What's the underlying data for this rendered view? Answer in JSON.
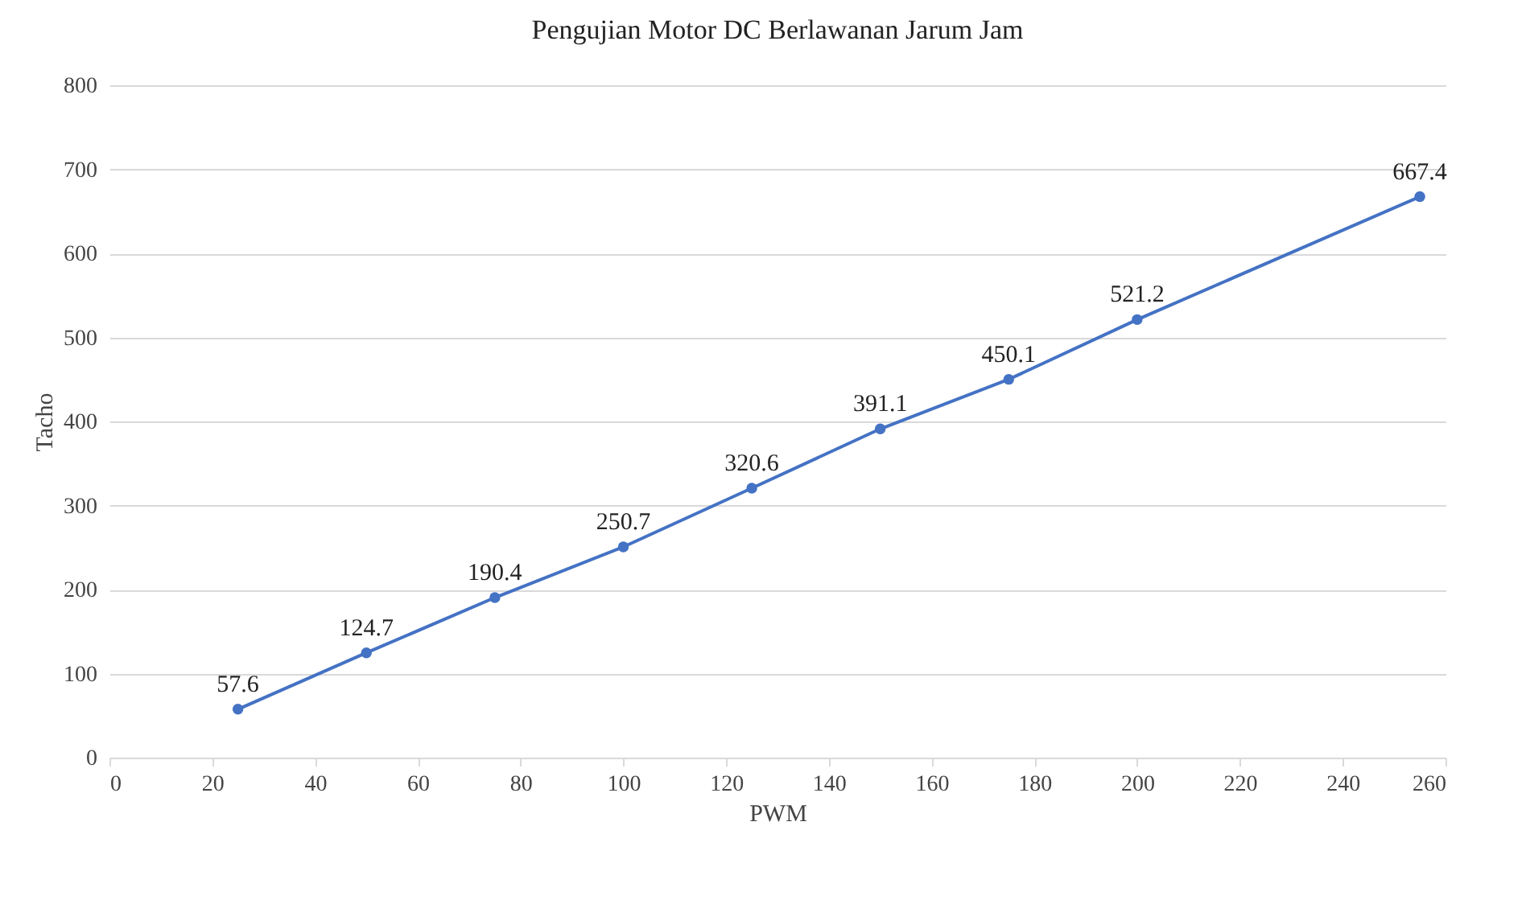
{
  "chart_data": {
    "type": "line",
    "title": "Pengujian  Motor DC Berlawanan  Jarum Jam",
    "xlabel": "PWM",
    "ylabel": "Tacho",
    "x": [
      25,
      50,
      75,
      100,
      125,
      150,
      175,
      200,
      255
    ],
    "series": [
      {
        "color": "#4472c4",
        "values": [
          57.6,
          124.7,
          190.4,
          250.7,
          320.6,
          391.1,
          450.1,
          521.2,
          667.4
        ]
      }
    ],
    "xlim": [
      0,
      260
    ],
    "xticks": [
      0,
      20,
      40,
      60,
      80,
      100,
      120,
      140,
      160,
      180,
      200,
      220,
      240,
      260
    ],
    "ylim": [
      0,
      800
    ],
    "yticks": [
      0,
      100,
      200,
      300,
      400,
      500,
      600,
      700,
      800
    ],
    "grid": "y",
    "marker": "circle",
    "line_style": "solid",
    "data_labels": true
  }
}
